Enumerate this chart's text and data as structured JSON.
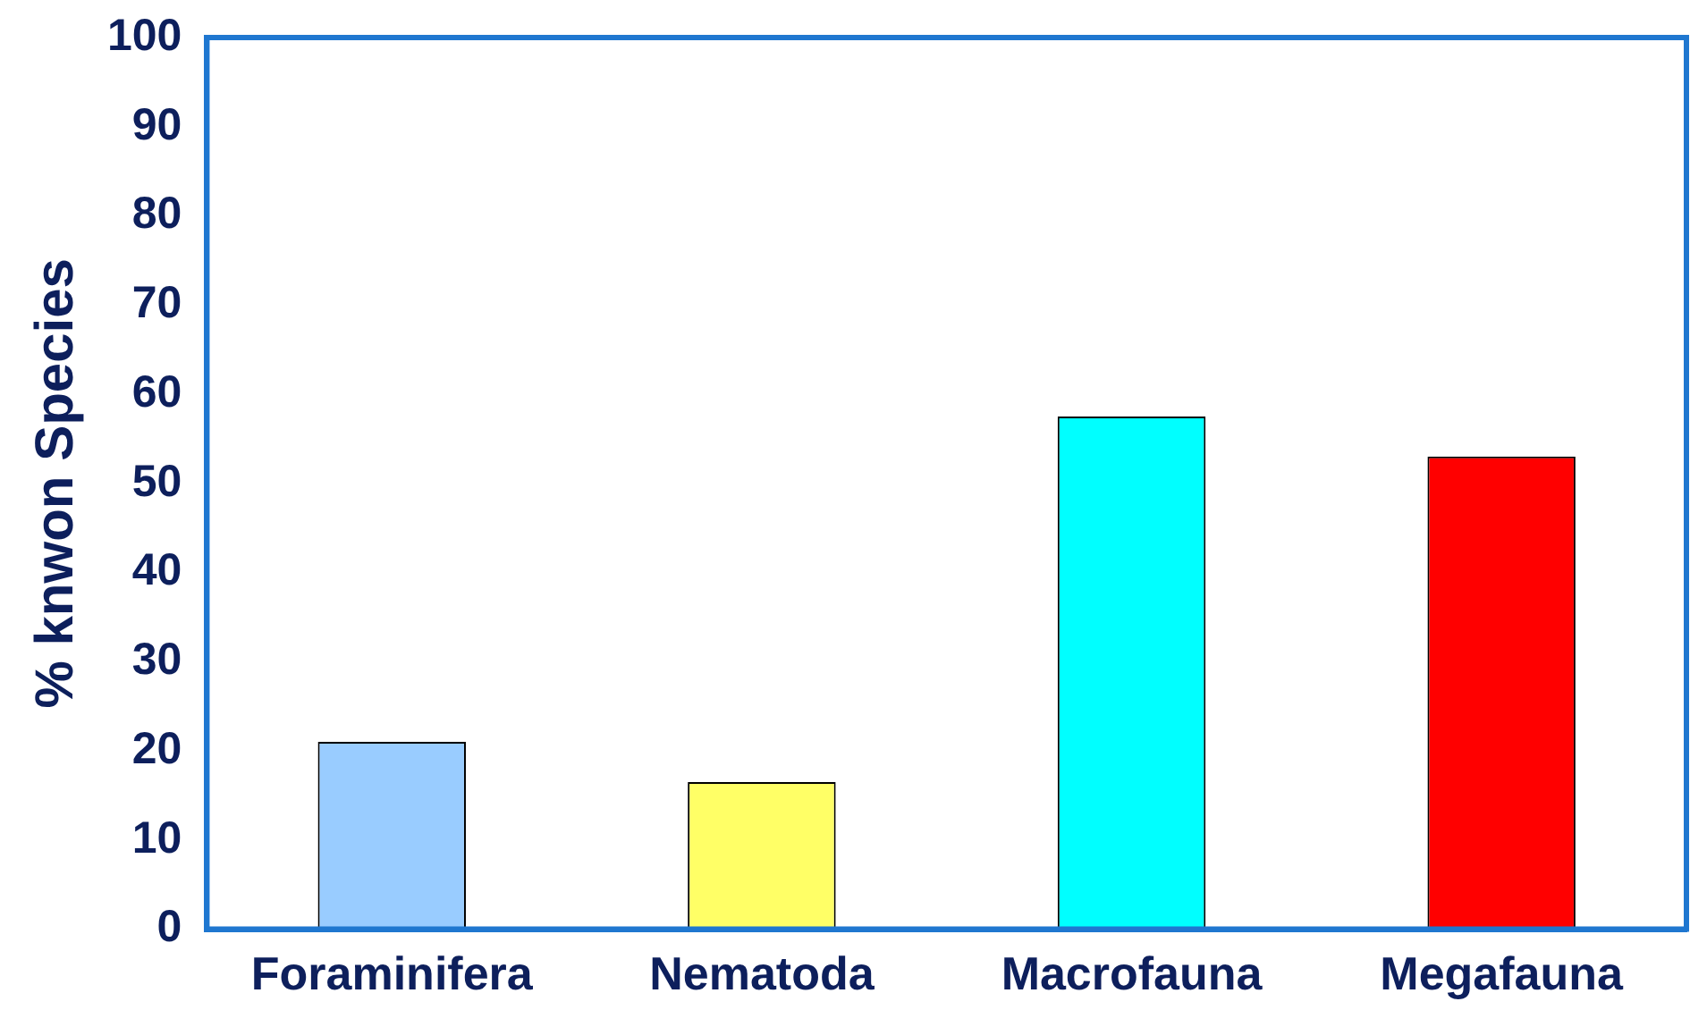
{
  "chart_data": {
    "type": "bar",
    "ylabel": "% knwon Species",
    "categories": [
      "Foraminifera",
      "Nematoda",
      "Macrofauna",
      "Megafauna"
    ],
    "values": [
      21,
      16.5,
      57.5,
      53
    ],
    "colors": [
      "#99ccff",
      "#ffff66",
      "#00ffff",
      "#ff0000"
    ],
    "ylim": [
      0,
      100
    ],
    "yticks": [
      0,
      10,
      20,
      30,
      40,
      50,
      60,
      70,
      80,
      90,
      100
    ],
    "grid": false,
    "legend": false
  }
}
